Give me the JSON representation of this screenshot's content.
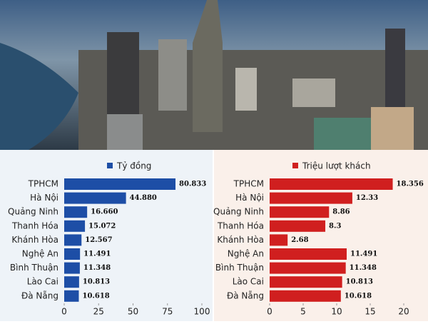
{
  "chart_data": [
    {
      "type": "bar",
      "orientation": "horizontal",
      "categories": [
        "TPHCM",
        "Hà Nội",
        "Quảng Ninh",
        "Thanh Hóa",
        "Khánh Hòa",
        "Nghệ An",
        "Bình Thuận",
        "Lào Cai",
        "Đà Nẵng"
      ],
      "series": [
        {
          "name": "Tỷ đồng",
          "color": "#1d4ea6",
          "values": [
            80.833,
            44.88,
            16.66,
            15.072,
            12.567,
            11.491,
            11.348,
            10.813,
            10.618
          ],
          "value_labels": [
            "80.833",
            "44.880",
            "16.660",
            "15.072",
            "12.567",
            "11.491",
            "11.348",
            "10.813",
            "10.618"
          ]
        }
      ],
      "xlim": [
        0,
        100
      ],
      "xticks": [
        0,
        25,
        50,
        75,
        100
      ]
    },
    {
      "type": "bar",
      "orientation": "horizontal",
      "categories": [
        "TPHCM",
        "Hà Nội",
        "Quảng Ninh",
        "Thanh Hóa",
        "Khánh Hòa",
        "Nghệ An",
        "Bình Thuận",
        "Lào Cai",
        "Đà Nẵng"
      ],
      "series": [
        {
          "name": "Triệu lượt khách",
          "color": "#d01f1f",
          "values": [
            18.356,
            12.33,
            8.86,
            8.3,
            2.68,
            11.491,
            11.348,
            10.813,
            10.618
          ],
          "value_labels": [
            "18.356",
            "12.33",
            "8.86",
            "8.3",
            "2.68",
            "11.491",
            "11.348",
            "10.813",
            "10.618"
          ]
        }
      ],
      "xlim": [
        0,
        20
      ],
      "xticks": [
        0,
        5,
        10,
        15,
        20
      ]
    }
  ]
}
